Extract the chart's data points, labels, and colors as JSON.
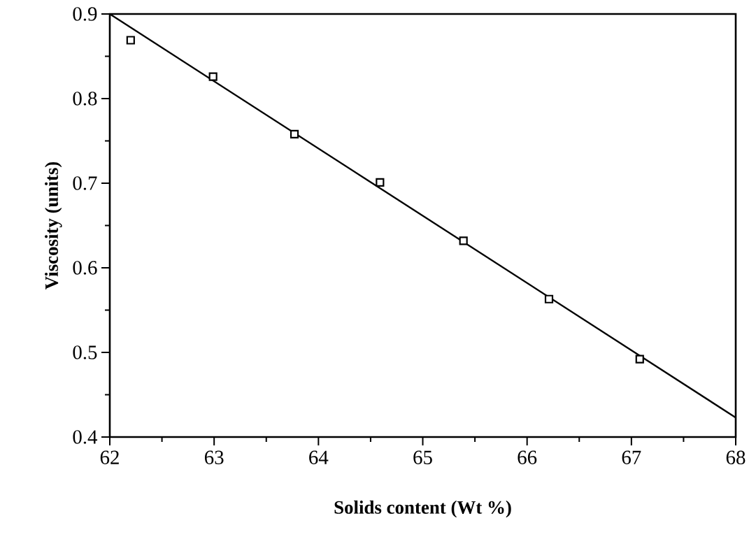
{
  "chart_data": {
    "type": "scatter",
    "xlabel": "Solids content (Wt %)",
    "ylabel": "Viscosity  (units)",
    "series": [
      {
        "color": "#000000",
        "marker": "square",
        "x": [
          62.2,
          62.99,
          63.77,
          64.59,
          65.39,
          66.21,
          67.08
        ],
        "values": [
          0.869,
          0.826,
          0.758,
          0.701,
          0.632,
          0.563,
          0.492
        ]
      },
      {
        "type": "line",
        "color": "#000000",
        "marker": "none",
        "line_style": "solid",
        "x": [
          62,
          68
        ],
        "values": [
          0.9,
          0.423
        ]
      }
    ],
    "xlim": [
      62,
      68
    ],
    "ylim": [
      0.4,
      0.9
    ],
    "xticks": [
      62,
      63,
      64,
      65,
      66,
      67,
      68
    ],
    "yticks": [
      0.4,
      0.5,
      0.6,
      0.7,
      0.8,
      0.9
    ],
    "grid": false
  }
}
